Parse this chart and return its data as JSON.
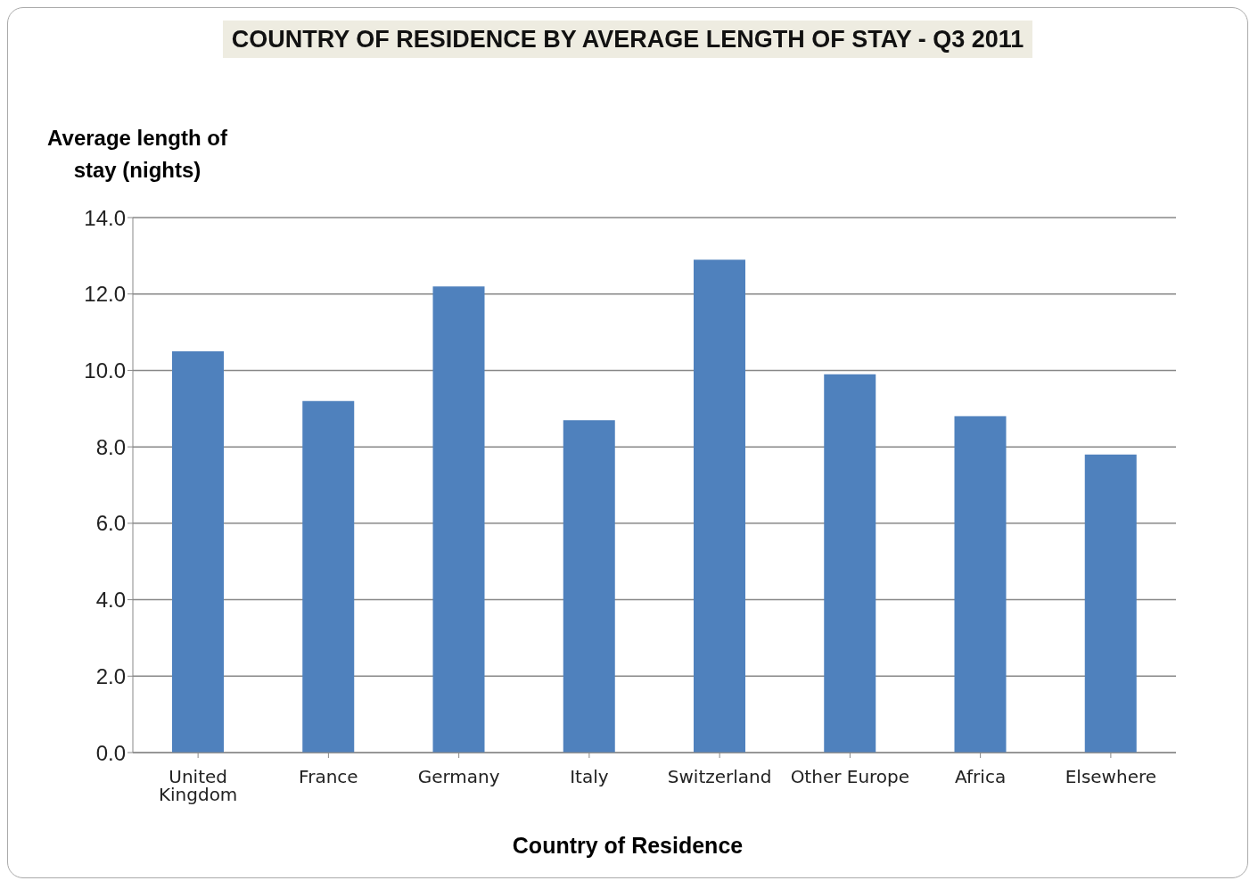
{
  "chart_data": {
    "type": "bar",
    "title": "COUNTRY OF RESIDENCE BY AVERAGE LENGTH OF STAY - Q3 2011",
    "xlabel": "Country of Residence",
    "ylabel": "Average length of stay (nights)",
    "categories": [
      "United Kingdom",
      "France",
      "Germany",
      "Italy",
      "Switzerland",
      "Other Europe",
      "Africa",
      "Elsewhere"
    ],
    "values": [
      10.5,
      9.2,
      12.2,
      8.7,
      12.9,
      9.9,
      8.8,
      7.8
    ],
    "color": "#4f81bd",
    "ylim": [
      0,
      14
    ],
    "yticks": [
      {
        "value": 0,
        "label": "0.0"
      },
      {
        "value": 2,
        "label": "2.0"
      },
      {
        "value": 4,
        "label": "4.0"
      },
      {
        "value": 6,
        "label": "6.0"
      },
      {
        "value": 8,
        "label": "8.0"
      },
      {
        "value": 10,
        "label": "10.0"
      },
      {
        "value": 12,
        "label": "12.0"
      },
      {
        "value": 14,
        "label": "14.0"
      }
    ],
    "grid": "y"
  }
}
